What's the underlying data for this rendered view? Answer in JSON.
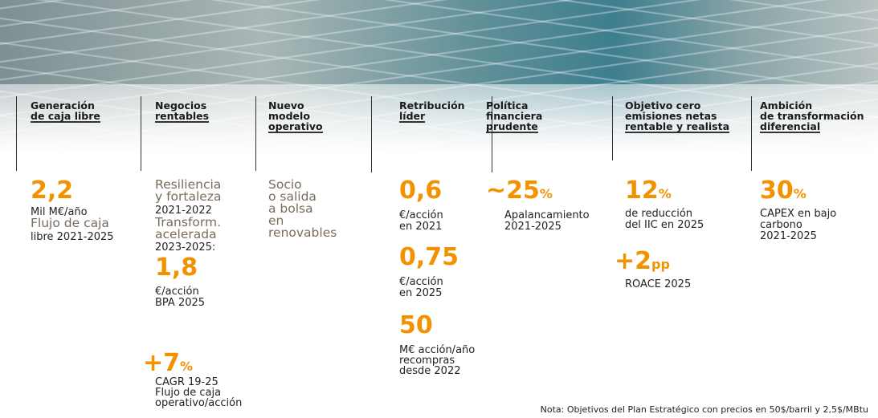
{
  "columns": [
    {
      "title": [
        "Generación",
        "de caja libre"
      ],
      "content": [
        "2,2",
        "Mil M€/año",
        "Flujo de caja",
        "libre 2021-2025"
      ]
    },
    {
      "title": [
        "Negocios",
        "rentables"
      ],
      "content": [
        "Resiliencia",
        "y fortaleza",
        "2021-2022",
        "Transform.",
        "acelerada",
        "2023-2025:",
        "1,8",
        "€/acción",
        "BPA 2025",
        "+7",
        "%",
        "CAGR 19-25",
        "Flujo de caja",
        "operativo/acción"
      ]
    },
    {
      "title": [
        "Nuevo",
        "modelo",
        "operativo"
      ],
      "content": [
        "Socio",
        "o salida",
        "a bolsa",
        "en",
        "renovables"
      ]
    },
    {
      "title": [
        "Retribución",
        "líder"
      ],
      "content": [
        "0,6",
        "€/acción",
        "en 2021",
        "0,75",
        "€/acción",
        "en 2025",
        "50",
        "M€ acción/año",
        "recompras",
        "desde 2022"
      ]
    },
    {
      "title": [
        "Política",
        "financiera",
        "prudente"
      ],
      "content": [
        "~",
        "25",
        "%",
        "Apalancamiento",
        "2021-2025"
      ]
    },
    {
      "title": [
        "Objetivo cero",
        "emisiones netas",
        "rentable y realista"
      ],
      "content": [
        "12",
        "%",
        "de reducción",
        "del IIC en 2025",
        "+2",
        "pp",
        "ROACE 2025"
      ]
    },
    {
      "title": [
        "Ambición",
        "de transformación",
        "diferencial"
      ],
      "content": [
        "30",
        "%",
        "CAPEX en bajo",
        "carbono",
        "2021-2025"
      ]
    }
  ],
  "note": "Nota: Objetivos del Plan Estratégico con precios en 50$/barril y 2,5$/MBtu"
}
